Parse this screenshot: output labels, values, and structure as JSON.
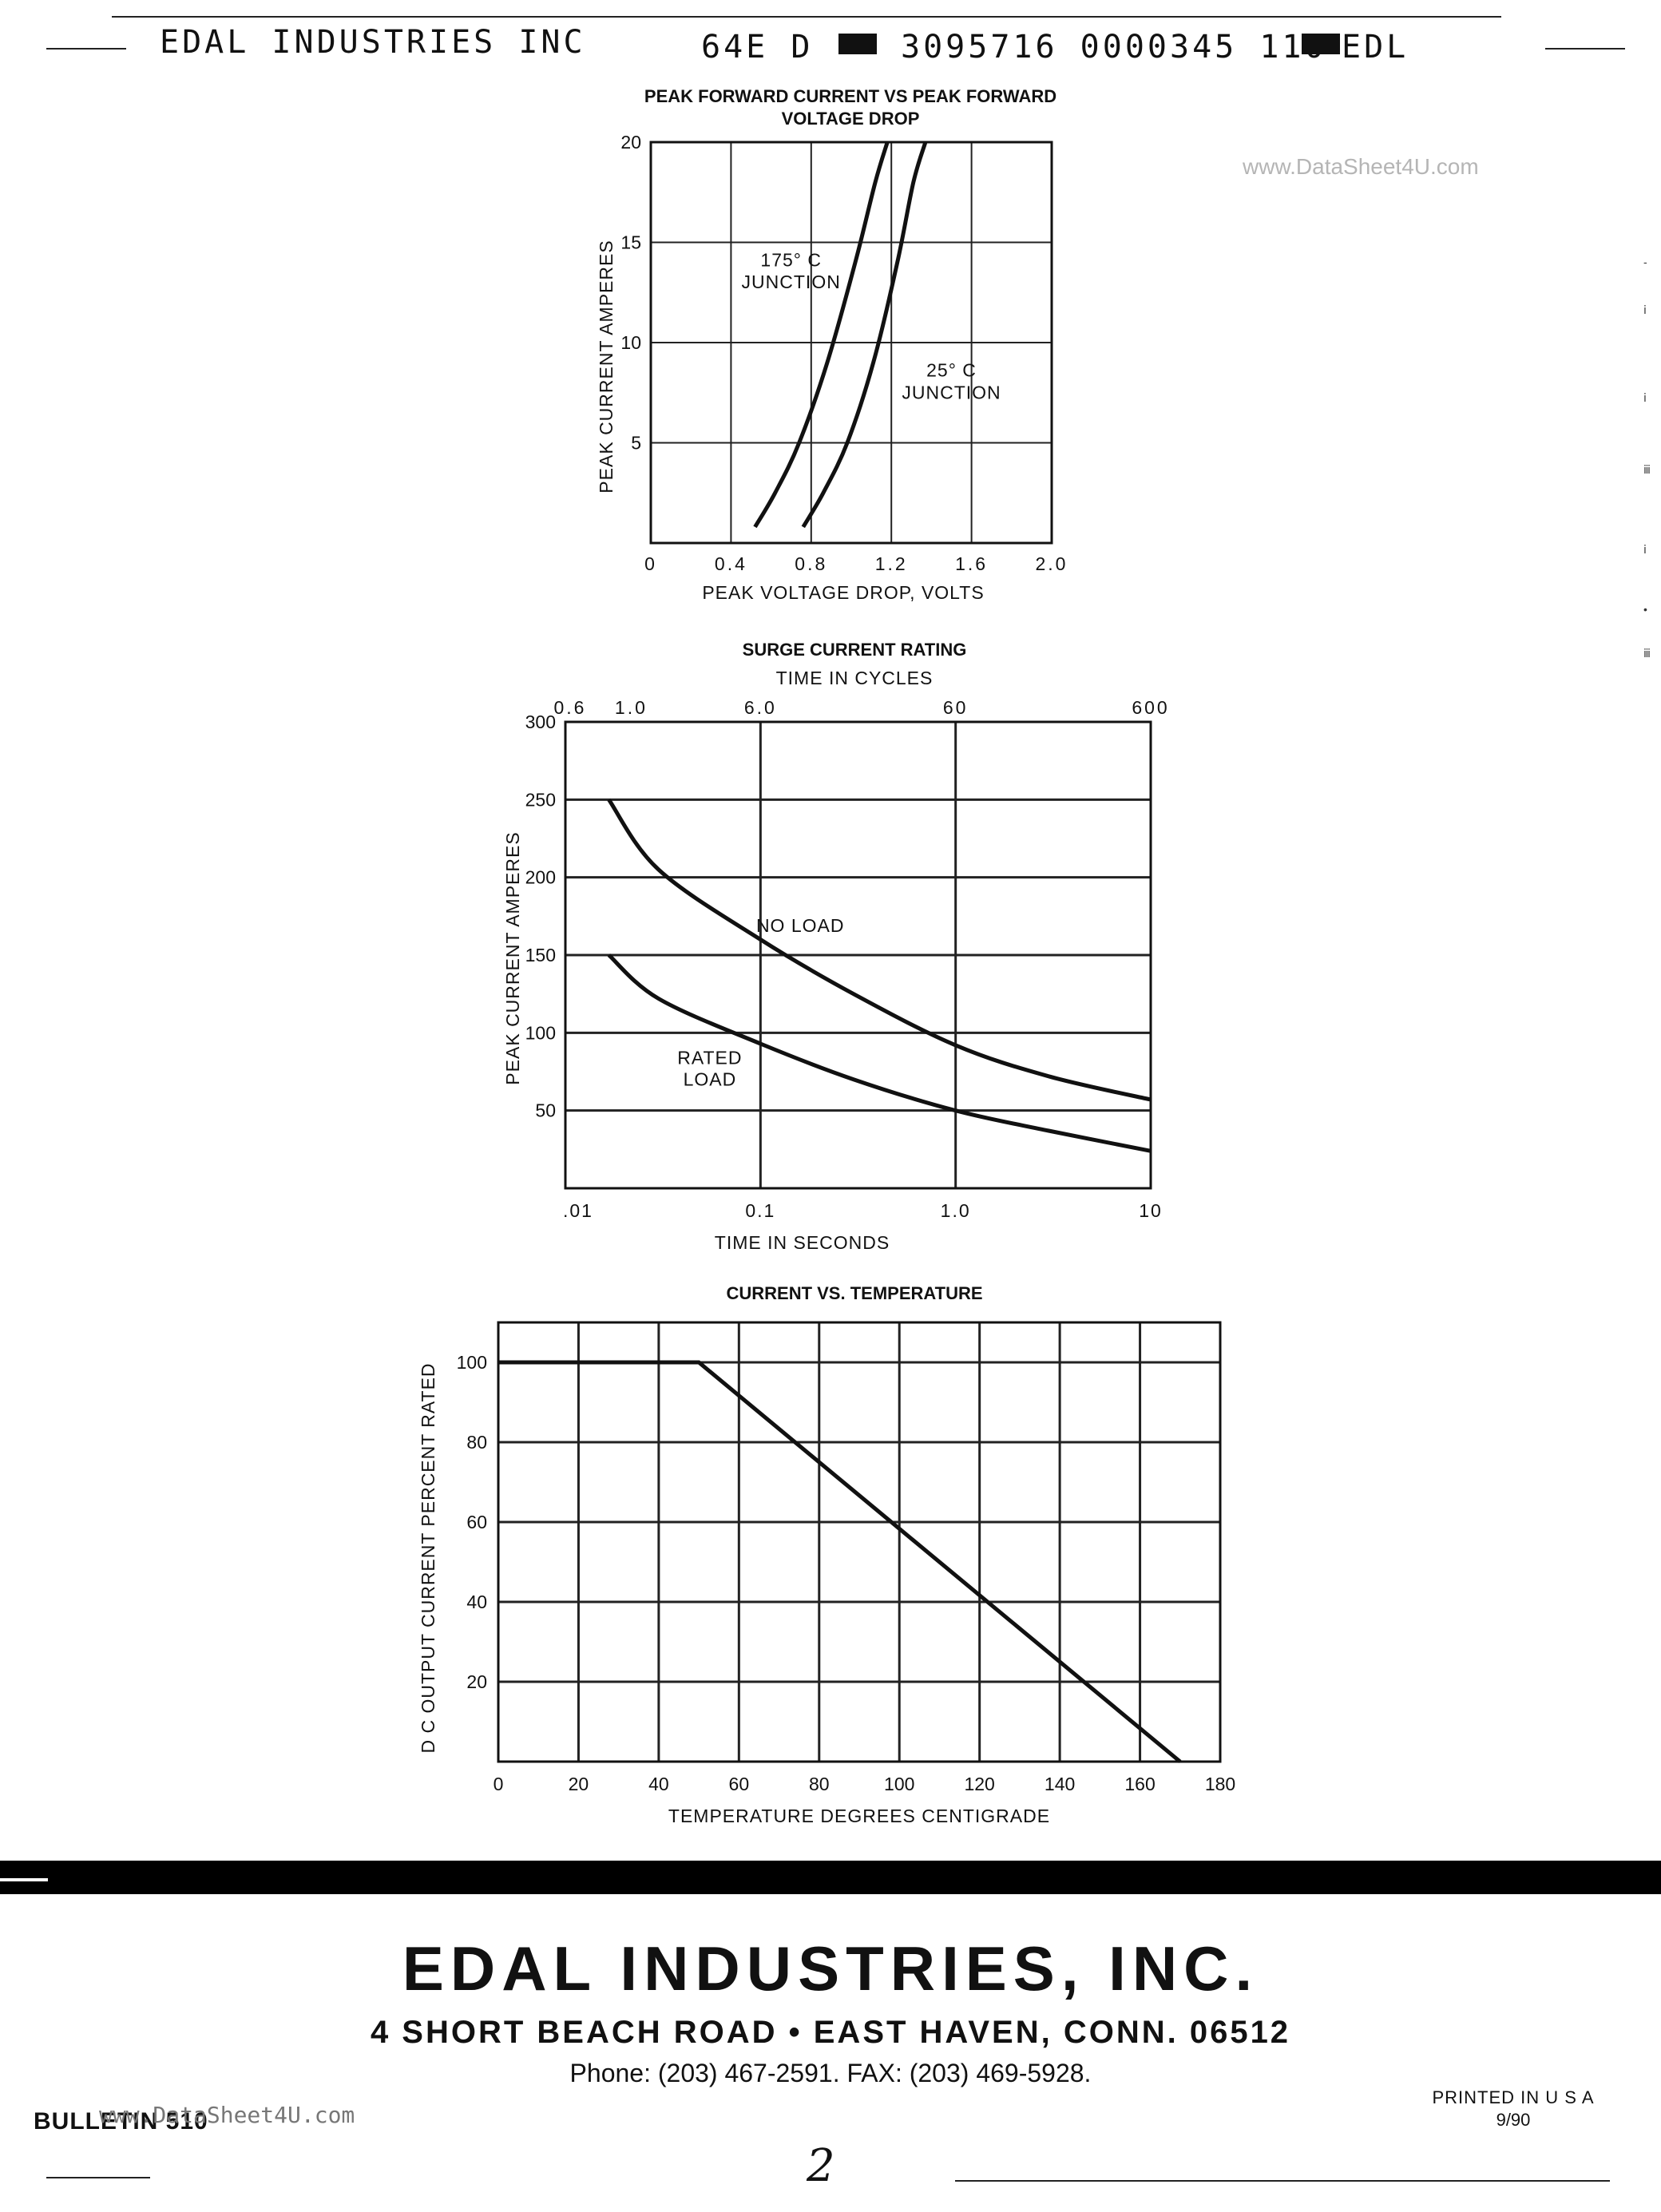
{
  "header": {
    "company": "EDAL INDUSTRIES INC",
    "code_1": "64E D",
    "code_2": "3095716 0000345 110",
    "code_3": "EDL"
  },
  "watermark_top": "www.DataSheet4U.com",
  "watermark_bottom": "www.DataSheet4U.com",
  "chart_data": [
    {
      "type": "line",
      "title": "PEAK FORWARD CURRENT VS PEAK FORWARD VOLTAGE DROP",
      "xlabel": "PEAK VOLTAGE DROP, VOLTS",
      "ylabel": "PEAK CURRENT AMPERES",
      "xlim": [
        0,
        2.0
      ],
      "ylim": [
        0,
        20
      ],
      "x_ticks": [
        "0",
        "0.4",
        "0.8",
        "1.2",
        "1.6",
        "2.0"
      ],
      "y_ticks": [
        "5",
        "10",
        "15",
        "20"
      ],
      "grid": true,
      "series": [
        {
          "name": "175° C JUNCTION",
          "x": [
            0.52,
            0.62,
            0.74,
            0.88,
            1.02,
            1.12,
            1.18
          ],
          "y": [
            0.8,
            2.5,
            5.0,
            9.0,
            14.0,
            18.0,
            20.0
          ]
        },
        {
          "name": "25° C JUNCTION",
          "x": [
            0.76,
            0.86,
            0.98,
            1.11,
            1.23,
            1.31,
            1.37
          ],
          "y": [
            0.8,
            2.5,
            5.0,
            9.0,
            14.0,
            18.0,
            20.0
          ]
        }
      ],
      "annotations": [
        {
          "text": "175° C",
          "x": 0.7,
          "y": 13.8
        },
        {
          "text": "JUNCTION",
          "x": 0.7,
          "y": 12.7
        },
        {
          "text": "25° C",
          "x": 1.5,
          "y": 8.3
        },
        {
          "text": "JUNCTION",
          "x": 1.5,
          "y": 7.2
        }
      ]
    },
    {
      "type": "line",
      "title": "SURGE CURRENT RATING",
      "subtitle": "TIME IN CYCLES",
      "xlabel": "TIME IN SECONDS",
      "ylabel": "PEAK CURRENT AMPERES",
      "x_scale": "log",
      "xlim": [
        0.01,
        10
      ],
      "ylim": [
        0,
        300
      ],
      "x_ticks": [
        ".01",
        "0.1",
        "1.0",
        "10"
      ],
      "top_ticks": [
        "0.6",
        "1.0",
        "6.0",
        "60",
        "600"
      ],
      "y_ticks": [
        "50",
        "100",
        "150",
        "200",
        "250",
        "300"
      ],
      "grid": true,
      "series": [
        {
          "name": "NO LOAD",
          "x": [
            0.0167,
            0.03,
            0.1,
            0.3,
            1.0,
            3.0,
            10.0
          ],
          "y": [
            250,
            205,
            160,
            125,
            92,
            72,
            57
          ]
        },
        {
          "name": "RATED LOAD",
          "x": [
            0.0167,
            0.03,
            0.1,
            0.3,
            1.0,
            3.0,
            10.0
          ],
          "y": [
            150,
            122,
            93,
            70,
            50,
            37,
            24
          ]
        }
      ],
      "annotations": [
        {
          "text": "NO LOAD",
          "x": 0.16,
          "y": 165
        },
        {
          "text": "RATED",
          "x": 0.055,
          "y": 80
        },
        {
          "text": "LOAD",
          "x": 0.055,
          "y": 66
        }
      ]
    },
    {
      "type": "line",
      "title": "CURRENT VS. TEMPERATURE",
      "xlabel": "TEMPERATURE   DEGREES   CENTIGRADE",
      "ylabel": "D C  OUTPUT CURRENT PERCENT RATED",
      "xlim": [
        0,
        180
      ],
      "ylim": [
        0,
        110
      ],
      "x_ticks": [
        "0",
        "20",
        "40",
        "60",
        "80",
        "100",
        "120",
        "140",
        "160",
        "180"
      ],
      "y_ticks": [
        "20",
        "40",
        "60",
        "80",
        "100"
      ],
      "grid": true,
      "series": [
        {
          "x": [
            0,
            50,
            170
          ],
          "y": [
            100,
            100,
            0
          ]
        }
      ]
    }
  ],
  "footer": {
    "company_name": "EDAL INDUSTRIES, INC.",
    "address": "4 SHORT BEACH ROAD • EAST HAVEN, CONN. 06512",
    "phone": "Phone: (203) 467-2591. FAX: (203) 469-5928.",
    "bulletin": "BULLETIN 510",
    "printed": "PRINTED IN U S A",
    "date": "9/90",
    "page_number": "2"
  }
}
